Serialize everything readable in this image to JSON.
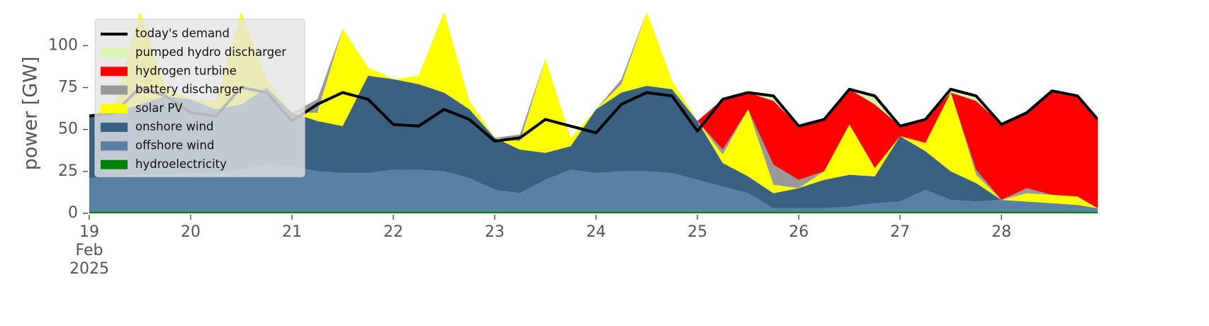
{
  "chart_data": {
    "type": "stacked-area",
    "ylabel": "power [GW]",
    "x": [
      19,
      19.25,
      19.5,
      19.75,
      20,
      20.25,
      20.5,
      20.75,
      21,
      21.25,
      21.5,
      21.75,
      22,
      22.25,
      22.5,
      22.75,
      23,
      23.25,
      23.5,
      23.75,
      24,
      24.25,
      24.5,
      24.75,
      25,
      25.25,
      25.5,
      25.75,
      26,
      26.25,
      26.5,
      26.75,
      27,
      27.25,
      27.5,
      27.75,
      28,
      28.25,
      28.5,
      28.75,
      28.95
    ],
    "xlim": [
      19,
      28.95
    ],
    "xticks": [
      {
        "value": 19,
        "label": "19\nFeb\n2025"
      },
      20,
      21,
      22,
      23,
      24,
      25,
      26,
      27,
      28
    ],
    "ylim": [
      0,
      120
    ],
    "yticks": [
      0,
      25,
      50,
      75,
      100
    ],
    "legend": "upper left",
    "line": {
      "name": "today's demand",
      "color": "#000000",
      "values": [
        58,
        60,
        75,
        70,
        60,
        58,
        75,
        72,
        55,
        65,
        72,
        68,
        53,
        52,
        62,
        56,
        43,
        45,
        56,
        52,
        48,
        65,
        72,
        70,
        49,
        68,
        72,
        70,
        52,
        56,
        74,
        70,
        52,
        56,
        74,
        70,
        53,
        60,
        73,
        70,
        56
      ]
    },
    "series": [
      {
        "name": "hydroelectricity",
        "color": "#008000",
        "values": [
          1,
          1,
          1,
          1,
          1,
          1,
          1,
          1,
          1,
          1,
          1,
          1,
          1,
          1,
          1,
          1,
          1,
          1,
          1,
          1,
          1,
          1,
          1,
          1,
          1,
          1,
          1,
          1,
          1,
          1,
          1,
          1,
          1,
          1,
          1,
          1,
          1,
          1,
          1,
          1,
          1
        ]
      },
      {
        "name": "offshore wind",
        "color": "#5b80a5",
        "values": [
          20,
          21,
          22,
          22,
          23,
          23,
          25,
          28,
          27,
          24,
          23,
          23,
          25,
          25,
          24,
          20,
          13,
          11,
          19,
          25,
          23,
          24,
          24,
          23,
          19,
          15,
          11,
          2,
          2,
          2,
          3,
          5,
          6,
          13,
          7,
          6,
          7,
          6,
          5,
          4,
          2
        ]
      },
      {
        "name": "onshore wind",
        "color": "#3b6182",
        "values": [
          37,
          38,
          42,
          47,
          44,
          38,
          39,
          46,
          32,
          30,
          28,
          58,
          54,
          51,
          47,
          41,
          31,
          26,
          16,
          14,
          38,
          47,
          51,
          50,
          35,
          14,
          10,
          9,
          12,
          17,
          19,
          16,
          39,
          23,
          17,
          11,
          0,
          0,
          0,
          0,
          0
        ]
      },
      {
        "name": "solar PV",
        "color": "#ffff00",
        "values": [
          0,
          5,
          55,
          5,
          0,
          5,
          55,
          5,
          0,
          5,
          58,
          5,
          0,
          5,
          48,
          5,
          0,
          5,
          56,
          5,
          0,
          5,
          44,
          5,
          0,
          5,
          40,
          5,
          0,
          5,
          30,
          5,
          0,
          5,
          47,
          5,
          0,
          5,
          5,
          5,
          0
        ]
      },
      {
        "name": "battery discharger",
        "color": "#999999",
        "values": [
          0,
          0,
          0,
          0,
          0,
          0,
          0,
          0,
          0,
          8,
          0,
          0,
          0,
          0,
          0,
          0,
          0,
          4,
          0,
          0,
          0,
          3,
          0,
          0,
          0,
          3,
          0,
          12,
          5,
          0,
          0,
          0,
          0,
          0,
          0,
          3,
          0,
          3,
          0,
          0,
          0
        ]
      },
      {
        "name": "hydrogen turbine",
        "color": "#ff0000",
        "values": [
          0,
          0,
          0,
          0,
          0,
          0,
          0,
          0,
          0,
          0,
          0,
          0,
          0,
          0,
          0,
          0,
          0,
          0,
          0,
          0,
          0,
          0,
          0,
          0,
          0,
          30,
          10,
          38,
          32,
          31,
          21,
          38,
          6,
          14,
          0,
          41,
          45,
          45,
          62,
          60,
          53
        ]
      },
      {
        "name": "pumped hydro discharger",
        "color": "#d9f7b0",
        "values": [
          0,
          0,
          0,
          0,
          0,
          0,
          0,
          0,
          0,
          0,
          0,
          0,
          0,
          0,
          0,
          0,
          0,
          0,
          0,
          0,
          0,
          0,
          0,
          0,
          0,
          0,
          0,
          3,
          0,
          0,
          0,
          5,
          0,
          0,
          2,
          3,
          0,
          0,
          0,
          0,
          0
        ]
      }
    ]
  }
}
